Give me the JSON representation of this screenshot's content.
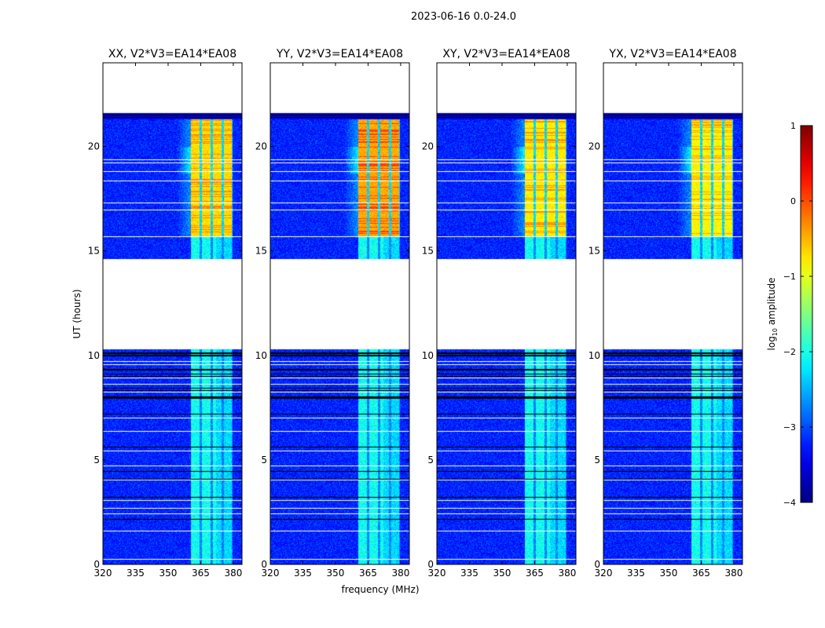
{
  "chart_data": {
    "type": "heatmap",
    "suptitle": "2023-06-16 0.0-24.0",
    "xlabel": "frequency (MHz)",
    "ylabel": "UT (hours)",
    "xlim": [
      320,
      384
    ],
    "ylim": [
      0,
      24
    ],
    "xticks": [
      320,
      335,
      350,
      365,
      380
    ],
    "yticks": [
      0,
      5,
      10,
      15,
      20
    ],
    "panels": [
      {
        "title": "XX, V2*V3=EA14*EA08",
        "rfi_level": -0.7,
        "rfi_peak": -0.3
      },
      {
        "title": "YY, V2*V3=EA14*EA08",
        "rfi_level": -0.45,
        "rfi_peak": 0.05
      },
      {
        "title": "XY, V2*V3=EA14*EA08",
        "rfi_level": -0.8,
        "rfi_peak": -0.35
      },
      {
        "title": "YX, V2*V3=EA14*EA08",
        "rfi_level": -0.85,
        "rfi_peak": -0.45
      }
    ],
    "data_time_ranges_hours": [
      [
        0,
        10.3
      ],
      [
        14.6,
        21.6
      ]
    ],
    "background_log_amplitude": -3.2,
    "rfi_band_mhz": [
      360.5,
      379.5
    ],
    "rfi_active_hours": [
      15.7,
      21.3
    ],
    "colorbar": {
      "label": "log10 amplitude",
      "label_main": "log",
      "label_sub": "10",
      "label_rest": " amplitude",
      "colormap": "jet",
      "range": [
        -4,
        1
      ],
      "ticks": [
        "1",
        "0",
        "−1",
        "−2",
        "−3",
        "−4"
      ]
    }
  }
}
